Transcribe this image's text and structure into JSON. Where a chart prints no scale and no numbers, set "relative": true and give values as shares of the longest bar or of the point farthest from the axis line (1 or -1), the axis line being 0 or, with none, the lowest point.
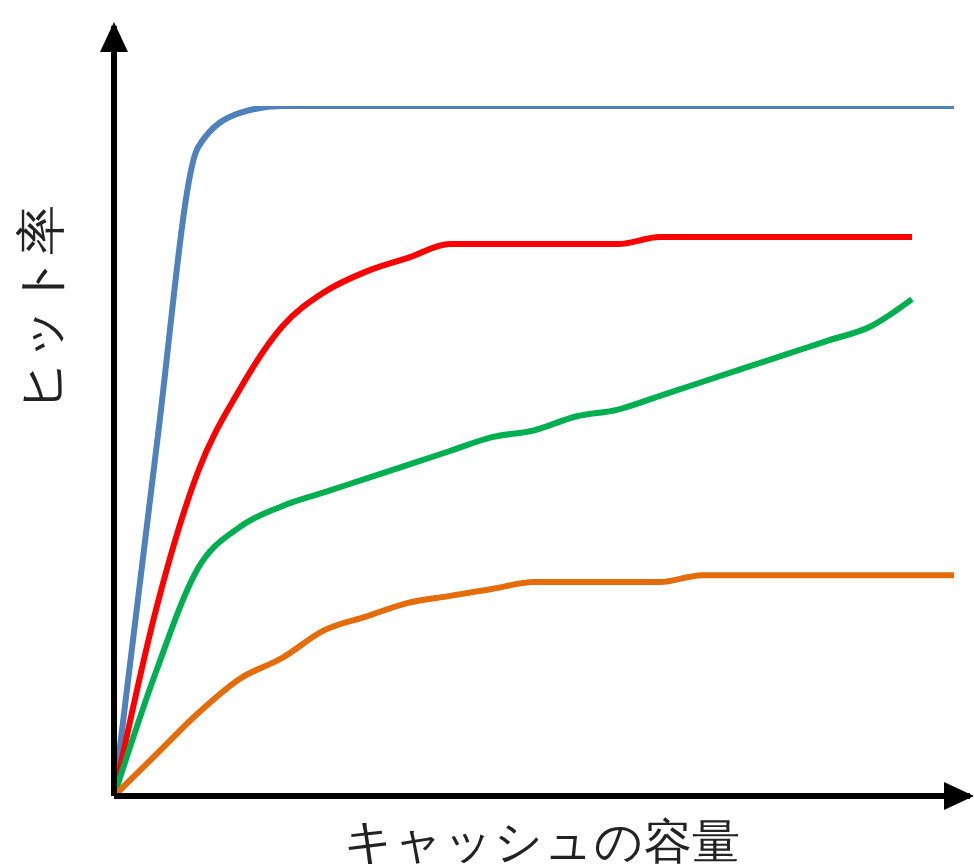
{
  "chart_data": {
    "type": "line",
    "relative": true,
    "xlabel": "キャッシュの容量",
    "ylabel": "ヒット率",
    "marker": "none",
    "line_style": "solid",
    "grid": false,
    "legend": false,
    "categories": [
      null,
      null,
      null,
      null,
      null,
      null,
      null,
      null,
      null,
      null,
      null,
      null,
      null,
      null,
      null,
      null,
      null,
      null,
      null,
      null,
      null
    ],
    "series": [
      {
        "color": "#4f81bd",
        "values": [
          0,
          0.5,
          0.94,
          0.99,
          1,
          1,
          1,
          1,
          1,
          1,
          1,
          1,
          1,
          1,
          1,
          1,
          1,
          1,
          1,
          1,
          1
        ]
      },
      {
        "color": "#ff0000",
        "values": [
          0,
          0.27,
          0.47,
          0.59,
          0.68,
          0.73,
          0.76,
          0.78,
          0.8,
          0.8,
          0.8,
          0.8,
          0.8,
          0.81,
          0.81,
          0.81,
          0.81,
          0.81,
          0.81,
          0.81,
          null
        ]
      },
      {
        "color": "#00b050",
        "values": [
          0,
          0.18,
          0.33,
          0.39,
          0.42,
          0.44,
          0.46,
          0.48,
          0.5,
          0.52,
          0.53,
          0.55,
          0.56,
          0.58,
          0.6,
          0.62,
          0.64,
          0.66,
          0.68,
          0.72,
          null
        ]
      },
      {
        "color": "#e46c0a",
        "values": [
          0,
          0.06,
          0.12,
          0.17,
          0.2,
          0.24,
          0.26,
          0.28,
          0.29,
          0.3,
          0.31,
          0.31,
          0.31,
          0.31,
          0.32,
          0.32,
          0.32,
          0.32,
          0.32,
          0.32,
          0.32
        ]
      }
    ]
  }
}
